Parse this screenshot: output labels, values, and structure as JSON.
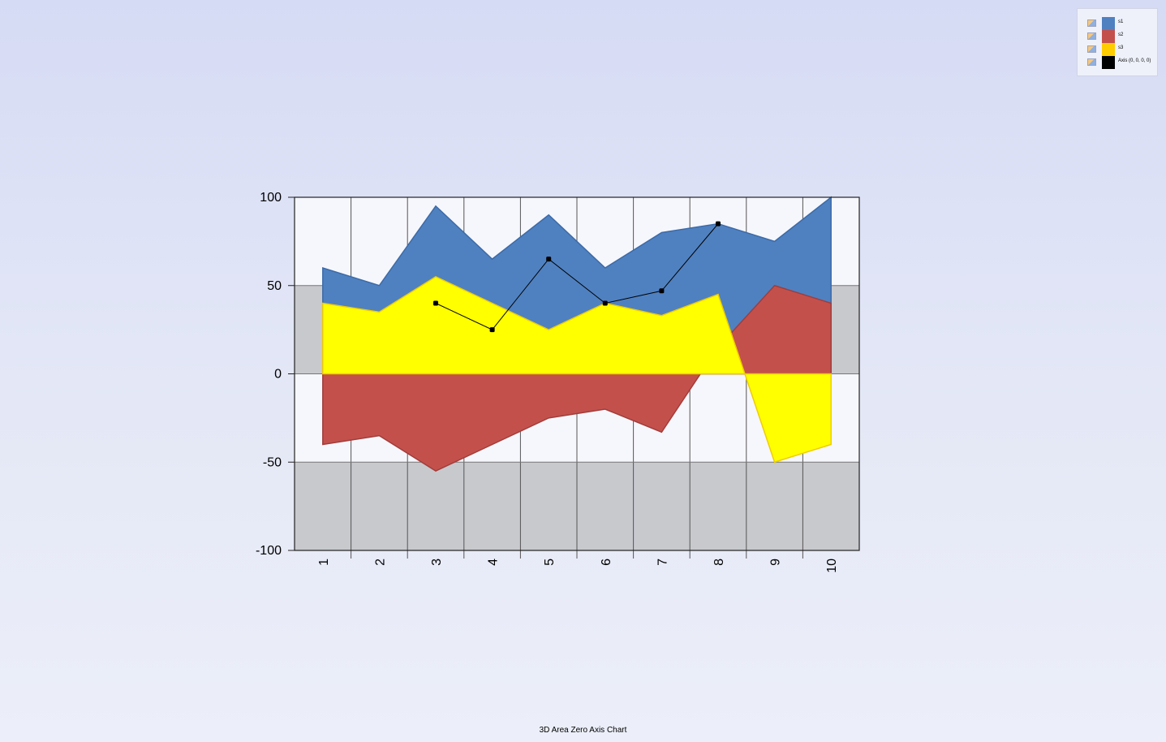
{
  "chart_data": {
    "type": "area",
    "title": "3D Area Zero Axis Chart",
    "categories": [
      "1",
      "2",
      "3",
      "4",
      "5",
      "6",
      "7",
      "8",
      "9",
      "10"
    ],
    "ylim": [
      -100,
      100
    ],
    "yticks": [
      "100",
      "50",
      "0",
      "-50",
      "-100"
    ],
    "grid": true,
    "legend_position": "top-right",
    "series": [
      {
        "name": "s1",
        "type": "area",
        "color": "#4f81c1",
        "values": [
          60,
          50,
          95,
          65,
          90,
          60,
          80,
          85,
          75,
          100
        ]
      },
      {
        "name": "s2",
        "type": "area",
        "color": "#c4504c",
        "values": [
          -40,
          -35,
          -55,
          -40,
          -25,
          -20,
          -33,
          15,
          50,
          40
        ]
      },
      {
        "name": "s3",
        "type": "area",
        "color": "#ffff00",
        "values": [
          40,
          35,
          55,
          40,
          25,
          40,
          33,
          45,
          -50,
          -40
        ]
      },
      {
        "name": "Axis (0, 0, 0, 0)",
        "type": "line",
        "color": "#000000",
        "values": [
          null,
          null,
          40,
          25,
          65,
          40,
          47,
          85,
          null,
          null
        ]
      }
    ]
  },
  "legend": {
    "items": [
      {
        "label": "s1",
        "color": "#4f81c1"
      },
      {
        "label": "s2",
        "color": "#c4504c"
      },
      {
        "label": "s3",
        "color": "#ffcc00"
      },
      {
        "label": "Axis (0, 0, 0, 0)",
        "color": "#000000"
      }
    ]
  }
}
